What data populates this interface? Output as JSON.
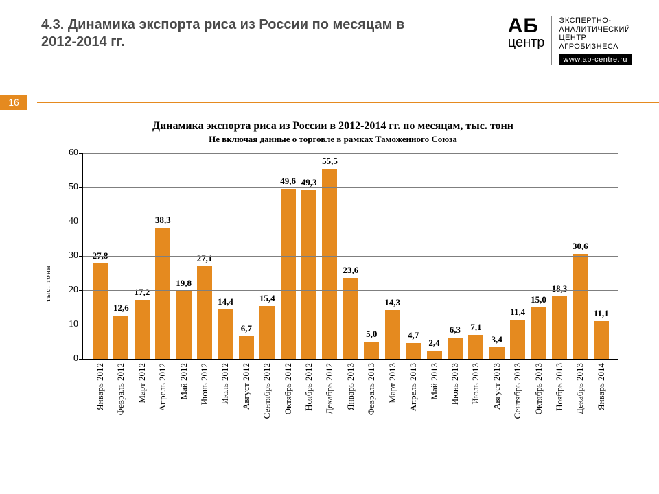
{
  "header": {
    "title": "4.3. Динамика экспорта риса из России по месяцам в 2012-2014 гг.",
    "page_number": "16",
    "logo": {
      "ab": "АБ",
      "centr": "центр",
      "tagline": "ЭКСПЕРТНО-\nАНАЛИТИЧЕСКИЙ\nЦЕНТР\nАГРОБИЗНЕСА",
      "url": "www.ab-centre.ru"
    }
  },
  "chart": {
    "type": "bar",
    "title": "Динамика экспорта риса из России в 2012-2014 гг. по месяцам, тыс. тонн",
    "subtitle": "Не включая данные о торговле в рамках Таможенного Союза",
    "y_axis_label": "тыс. тонн",
    "ylim": [
      0,
      60
    ],
    "ytick_step": 10,
    "yticks": [
      "0",
      "10",
      "20",
      "30",
      "40",
      "50",
      "60"
    ],
    "bar_color": "#e58a1f",
    "grid_color": "#7f7f7f",
    "axis_color": "#000000",
    "background_color": "#ffffff",
    "label_fontsize": 13,
    "title_fontsize": 16,
    "categories": [
      "Январь 2012",
      "Февраль 2012",
      "Март 2012",
      "Апрель 2012",
      "Май 2012",
      "Июнь 2012",
      "Июль 2012",
      "Август 2012",
      "Сентябрь 2012",
      "Октябрь 2012",
      "Ноябрь 2012",
      "Декабрь 2012",
      "Январь 2013",
      "Февраль 2013",
      "Март 2013",
      "Апрель 2013",
      "Май 2013",
      "Июнь 2013",
      "Июль 2013",
      "Август 2013",
      "Сентябрь 2013",
      "Октябрь 2013",
      "Ноябрь 2013",
      "Декабрь 2013",
      "Январь 2014"
    ],
    "values": [
      27.8,
      12.6,
      17.2,
      38.3,
      19.8,
      27.1,
      14.4,
      6.7,
      15.4,
      49.6,
      49.3,
      55.5,
      23.6,
      5.0,
      14.3,
      4.7,
      2.4,
      6.3,
      7.1,
      3.4,
      11.4,
      15.0,
      18.3,
      30.6,
      11.1
    ],
    "value_labels": [
      "27,8",
      "12,6",
      "17,2",
      "38,3",
      "19,8",
      "27,1",
      "14,4",
      "6,7",
      "15,4",
      "49,6",
      "49,3",
      "55,5",
      "23,6",
      "5,0",
      "14,3",
      "4,7",
      "2,4",
      "6,3",
      "7,1",
      "3,4",
      "11,4",
      "15,0",
      "18,3",
      "30,6",
      "11,1"
    ]
  }
}
